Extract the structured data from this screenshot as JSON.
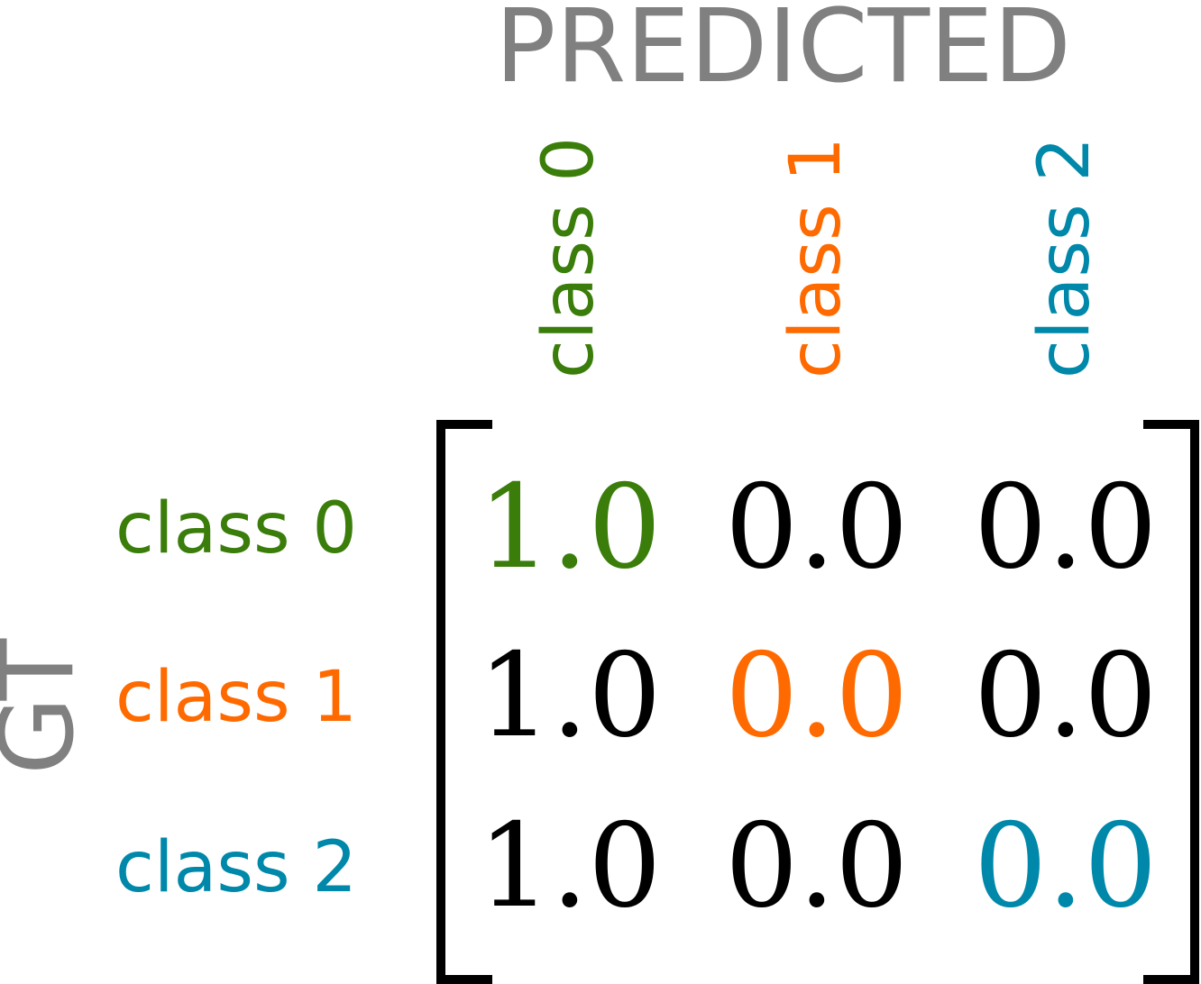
{
  "title": "PREDICTED",
  "y_title": "GT",
  "colors": {
    "title_gray": "#808080",
    "class_0": "#3a7d0a",
    "class_1": "#ff6a00",
    "class_2": "#0088aa",
    "default": "#000000"
  },
  "columns": [
    {
      "label": "class 0",
      "color": "#3a7d0a"
    },
    {
      "label": "class 1",
      "color": "#ff6a00"
    },
    {
      "label": "class 2",
      "color": "#0088aa"
    }
  ],
  "rows": [
    {
      "label": "class 0",
      "color": "#3a7d0a"
    },
    {
      "label": "class 1",
      "color": "#ff6a00"
    },
    {
      "label": "class 2",
      "color": "#0088aa"
    }
  ],
  "matrix": [
    [
      "1.0",
      "0.0",
      "0.0"
    ],
    [
      "1.0",
      "0.0",
      "0.0"
    ],
    [
      "1.0",
      "0.0",
      "0.0"
    ]
  ]
}
